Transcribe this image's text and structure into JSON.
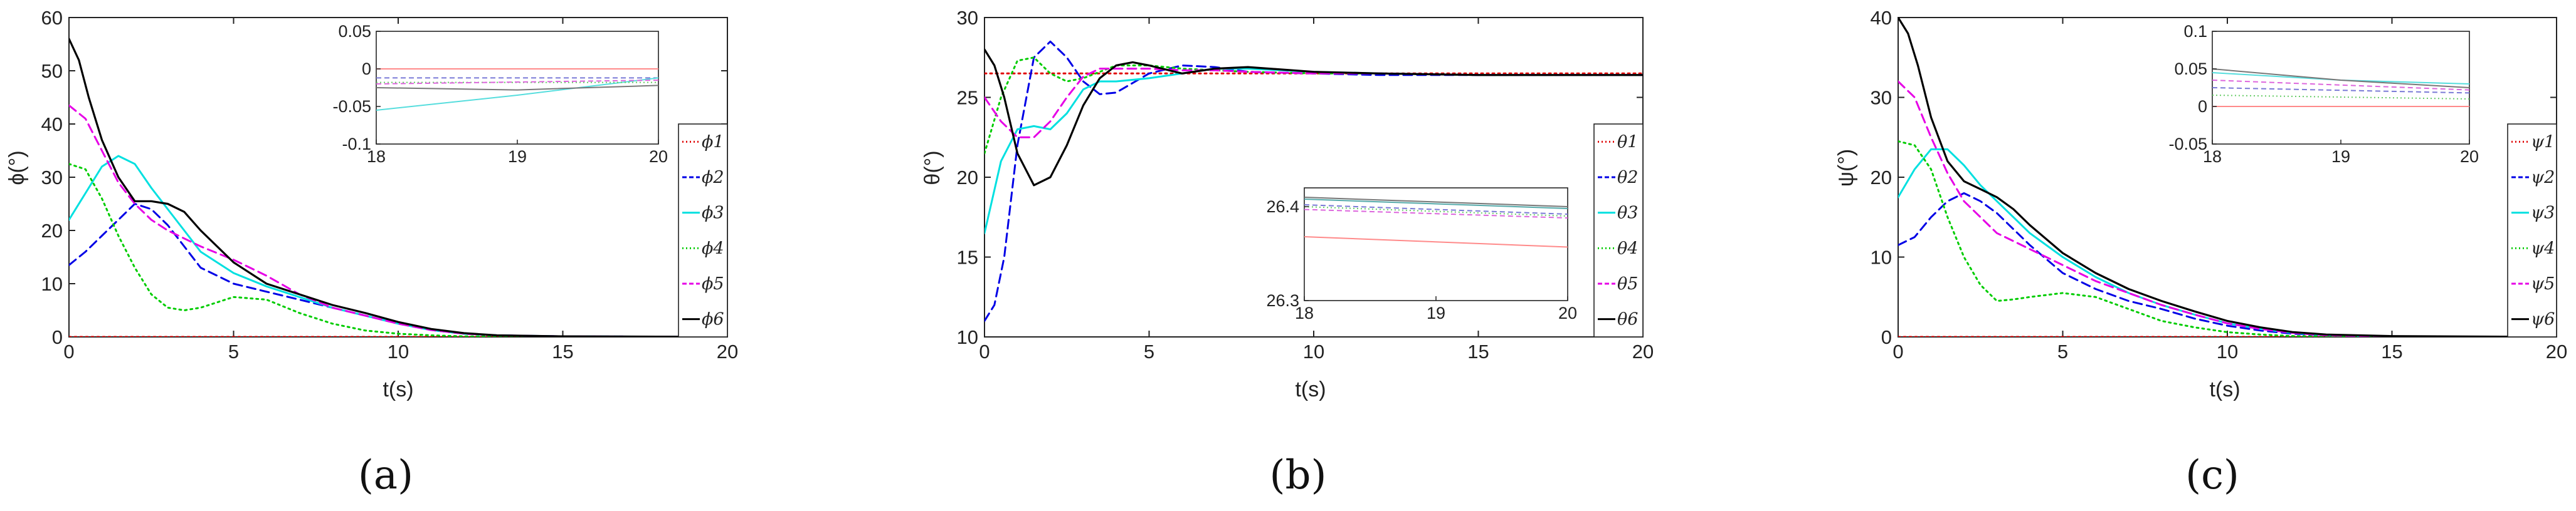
{
  "chart_data": [
    {
      "type": "line",
      "panel_label": "(a)",
      "xlabel": "t(s)",
      "ylabel": "ϕ(°)",
      "xlim": [
        0,
        20
      ],
      "ylim": [
        0,
        60
      ],
      "xticks": [
        "0",
        "5",
        "10",
        "15",
        "20"
      ],
      "yticks": [
        "0",
        "10",
        "20",
        "30",
        "40",
        "50",
        "60"
      ],
      "legend_symbol": "ϕ",
      "series": [
        {
          "name": "ϕ1",
          "color": "#e00000",
          "dash": "dot",
          "x": [
            0,
            20
          ],
          "y": [
            0,
            0
          ]
        },
        {
          "name": "ϕ2",
          "color": "#0000e6",
          "dash": "dash",
          "x": [
            0,
            0.5,
            1,
            1.5,
            2,
            2.5,
            3,
            3.5,
            4,
            5,
            6,
            7,
            8,
            9,
            10,
            11,
            12,
            13,
            15,
            20
          ],
          "y": [
            13.5,
            16,
            19,
            22,
            25,
            24,
            21,
            17,
            13,
            10,
            8.5,
            7,
            5.5,
            4,
            2.5,
            1.3,
            0.6,
            0.3,
            0.1,
            0
          ]
        },
        {
          "name": "ϕ3",
          "color": "#00e0e0",
          "dash": "solid",
          "x": [
            0,
            0.5,
            1,
            1.5,
            2,
            2.5,
            3,
            3.5,
            4,
            5,
            6,
            7,
            8,
            9,
            10,
            11,
            12,
            13,
            15,
            20
          ],
          "y": [
            22,
            27,
            32,
            34,
            32.5,
            28,
            24,
            20,
            16,
            12,
            9.5,
            7.5,
            5.5,
            4,
            2.5,
            1.3,
            0.6,
            0.3,
            0.1,
            0
          ]
        },
        {
          "name": "ϕ4",
          "color": "#00cc00",
          "dash": "dot",
          "x": [
            0,
            0.5,
            1,
            1.5,
            2,
            2.5,
            3,
            3.5,
            4,
            5,
            6,
            7,
            8,
            9,
            10,
            11,
            12,
            13,
            15,
            20
          ],
          "y": [
            32.5,
            31.5,
            26,
            19,
            13,
            8,
            5.5,
            5,
            5.5,
            7.5,
            7,
            4.5,
            2.5,
            1.2,
            0.6,
            0.3,
            0.1,
            0.05,
            0,
            0
          ]
        },
        {
          "name": "ϕ5",
          "color": "#e600e6",
          "dash": "dash",
          "x": [
            0,
            0.5,
            1,
            1.5,
            2,
            2.5,
            3,
            3.5,
            4,
            5,
            6,
            7,
            8,
            9,
            10,
            11,
            12,
            13,
            15,
            20
          ],
          "y": [
            43.5,
            41,
            35,
            29,
            25,
            22,
            20,
            18.5,
            17,
            14.5,
            11.5,
            8,
            5.5,
            4,
            2.5,
            1.3,
            0.6,
            0.3,
            0.1,
            0
          ]
        },
        {
          "name": "ϕ6",
          "color": "#000000",
          "dash": "solid",
          "x": [
            0,
            0.3,
            0.6,
            1,
            1.5,
            2,
            2.5,
            3,
            3.5,
            4,
            5,
            6,
            7,
            8,
            9,
            10,
            11,
            12,
            13,
            15,
            20
          ],
          "y": [
            56,
            52,
            45,
            37,
            30,
            25.5,
            25.5,
            25,
            23.5,
            20,
            14,
            10,
            8,
            6,
            4.5,
            2.8,
            1.5,
            0.7,
            0.3,
            0.1,
            0
          ]
        }
      ],
      "inset": {
        "xlim": [
          18,
          20
        ],
        "ylim": [
          -0.1,
          0.05
        ],
        "xticks": [
          "18",
          "19",
          "20"
        ],
        "yticks": [
          "0.05",
          "0",
          "-0.05",
          "-0.1"
        ],
        "series": [
          {
            "name": "ϕ1",
            "color": "#ff8a8a",
            "dash": "solid",
            "x": [
              18,
              20
            ],
            "y": [
              0,
              0
            ]
          },
          {
            "name": "ϕ2",
            "color": "#7a7ad6",
            "dash": "dash",
            "x": [
              18,
              20
            ],
            "y": [
              -0.012,
              -0.012
            ]
          },
          {
            "name": "ϕ3",
            "color": "#55dddd",
            "dash": "solid",
            "x": [
              18,
              19,
              20
            ],
            "y": [
              -0.055,
              -0.035,
              -0.012
            ]
          },
          {
            "name": "ϕ4",
            "color": "#66cc66",
            "dash": "dot",
            "x": [
              18,
              20
            ],
            "y": [
              -0.018,
              -0.018
            ]
          },
          {
            "name": "ϕ5",
            "color": "#dd66dd",
            "dash": "dash",
            "x": [
              18,
              20
            ],
            "y": [
              -0.02,
              -0.015
            ]
          },
          {
            "name": "ϕ6",
            "color": "#777777",
            "dash": "solid",
            "x": [
              18,
              19,
              20
            ],
            "y": [
              -0.025,
              -0.028,
              -0.022
            ]
          }
        ]
      }
    },
    {
      "type": "line",
      "panel_label": "(b)",
      "xlabel": "t(s)",
      "ylabel": "θ(°)",
      "xlim": [
        0,
        20
      ],
      "ylim": [
        10,
        30
      ],
      "xticks": [
        "0",
        "5",
        "10",
        "15",
        "20"
      ],
      "yticks": [
        "10",
        "15",
        "20",
        "25",
        "30"
      ],
      "legend_symbol": "θ",
      "series": [
        {
          "name": "θ1",
          "color": "#e00000",
          "dash": "dot",
          "x": [
            0,
            20
          ],
          "y": [
            26.5,
            26.5
          ]
        },
        {
          "name": "θ2",
          "color": "#0000e6",
          "dash": "dash",
          "x": [
            0,
            0.3,
            0.6,
            1,
            1.5,
            2,
            2.5,
            3,
            3.5,
            4,
            5,
            6,
            7,
            8,
            10,
            12,
            15,
            20
          ],
          "y": [
            11,
            12,
            15,
            22,
            27.5,
            28.5,
            27.5,
            26,
            25.2,
            25.3,
            26.5,
            27,
            26.9,
            26.6,
            26.5,
            26.4,
            26.4,
            26.4
          ]
        },
        {
          "name": "θ3",
          "color": "#00e0e0",
          "dash": "solid",
          "x": [
            0,
            0.5,
            1,
            1.5,
            2,
            2.5,
            3,
            3.5,
            4,
            5,
            6,
            7,
            8,
            10,
            12,
            15,
            20
          ],
          "y": [
            16.5,
            21,
            23,
            23.2,
            23,
            24,
            25.5,
            26,
            26,
            26.2,
            26.5,
            26.8,
            26.8,
            26.6,
            26.5,
            26.4,
            26.4
          ]
        },
        {
          "name": "θ4",
          "color": "#00cc00",
          "dash": "dot",
          "x": [
            0,
            0.5,
            1,
            1.5,
            2,
            2.5,
            3,
            3.5,
            4,
            5,
            6,
            7,
            8,
            10,
            12,
            15,
            20
          ],
          "y": [
            21.5,
            25,
            27.3,
            27.5,
            26.5,
            26,
            26.2,
            26.6,
            27,
            27,
            26.8,
            26.7,
            26.6,
            26.5,
            26.5,
            26.4,
            26.4
          ]
        },
        {
          "name": "θ5",
          "color": "#e600e6",
          "dash": "dash",
          "x": [
            0,
            0.5,
            1,
            1.5,
            2,
            2.5,
            3,
            3.5,
            4,
            5,
            6,
            7,
            8,
            10,
            12,
            15,
            20
          ],
          "y": [
            25,
            23.5,
            22.5,
            22.5,
            23.5,
            25,
            26.3,
            26.8,
            26.8,
            26.8,
            26.7,
            26.7,
            26.6,
            26.5,
            26.5,
            26.4,
            26.4
          ]
        },
        {
          "name": "θ6",
          "color": "#000000",
          "dash": "solid",
          "x": [
            0,
            0.3,
            0.6,
            1,
            1.5,
            2,
            2.5,
            3,
            3.5,
            4,
            4.5,
            5,
            6,
            7,
            8,
            10,
            12,
            15,
            20
          ],
          "y": [
            28,
            27,
            25,
            21.5,
            19.5,
            20,
            22,
            24.5,
            26.2,
            27,
            27.2,
            27,
            26.5,
            26.8,
            26.9,
            26.6,
            26.5,
            26.4,
            26.4
          ]
        }
      ],
      "inset": {
        "xlim": [
          18,
          20
        ],
        "ylim": [
          26.3,
          26.42
        ],
        "xticks": [
          "18",
          "19",
          "20"
        ],
        "yticks": [
          "26.4",
          "26.3"
        ],
        "series": [
          {
            "name": "θ1",
            "color": "#ff8a8a",
            "dash": "solid",
            "x": [
              18,
              20
            ],
            "y": [
              26.368,
              26.357
            ]
          },
          {
            "name": "θ2",
            "color": "#7a7ad6",
            "dash": "dash",
            "x": [
              18,
              20
            ],
            "y": [
              26.402,
              26.392
            ]
          },
          {
            "name": "θ3",
            "color": "#55aaaa",
            "dash": "solid",
            "x": [
              18,
              20
            ],
            "y": [
              26.408,
              26.398
            ]
          },
          {
            "name": "θ4",
            "color": "#66cc66",
            "dash": "dot",
            "x": [
              18,
              20
            ],
            "y": [
              26.4,
              26.39
            ]
          },
          {
            "name": "θ5",
            "color": "#dd66dd",
            "dash": "dash",
            "x": [
              18,
              20
            ],
            "y": [
              26.397,
              26.388
            ]
          },
          {
            "name": "θ6",
            "color": "#777777",
            "dash": "solid",
            "x": [
              18,
              20
            ],
            "y": [
              26.41,
              26.4
            ]
          }
        ]
      }
    },
    {
      "type": "line",
      "panel_label": "(c)",
      "xlabel": "t(s)",
      "ylabel": "ψ(°)",
      "xlim": [
        0,
        20
      ],
      "ylim": [
        0,
        40
      ],
      "xticks": [
        "0",
        "5",
        "10",
        "15",
        "20"
      ],
      "yticks": [
        "0",
        "10",
        "20",
        "30",
        "40"
      ],
      "legend_symbol": "ψ",
      "series": [
        {
          "name": "ψ1",
          "color": "#e00000",
          "dash": "dot",
          "x": [
            0,
            20
          ],
          "y": [
            0,
            0
          ]
        },
        {
          "name": "ψ2",
          "color": "#0000e6",
          "dash": "dash",
          "x": [
            0,
            0.5,
            1,
            1.5,
            2,
            2.5,
            3,
            3.5,
            4,
            5,
            6,
            7,
            8,
            9,
            10,
            11,
            12,
            13,
            15,
            20
          ],
          "y": [
            11.5,
            12.5,
            15,
            17,
            18,
            17,
            15.5,
            13.5,
            11.5,
            8,
            6,
            4.5,
            3.5,
            2.3,
            1.4,
            0.8,
            0.4,
            0.2,
            0.05,
            0
          ]
        },
        {
          "name": "ψ3",
          "color": "#00e0e0",
          "dash": "solid",
          "x": [
            0,
            0.5,
            1,
            1.5,
            2,
            2.5,
            3,
            3.5,
            4,
            5,
            6,
            7,
            8,
            9,
            10,
            11,
            12,
            13,
            15,
            20
          ],
          "y": [
            17.5,
            21,
            23.5,
            23.5,
            21.5,
            19,
            17,
            15,
            13,
            10,
            7.5,
            5.5,
            4,
            2.8,
            1.7,
            1,
            0.5,
            0.2,
            0.05,
            0
          ]
        },
        {
          "name": "ψ4",
          "color": "#00cc00",
          "dash": "dot",
          "x": [
            0,
            0.5,
            1,
            1.5,
            2,
            2.5,
            3,
            3.5,
            4,
            5,
            6,
            7,
            8,
            9,
            10,
            11,
            12,
            13,
            15,
            20
          ],
          "y": [
            24.5,
            24,
            21,
            15,
            10,
            6.5,
            4.5,
            4.7,
            5,
            5.5,
            5,
            3.5,
            2,
            1.2,
            0.6,
            0.3,
            0.1,
            0.05,
            0,
            0
          ]
        },
        {
          "name": "ψ5",
          "color": "#e600e6",
          "dash": "dash",
          "x": [
            0,
            0.5,
            1,
            1.5,
            2,
            2.5,
            3,
            3.5,
            4,
            5,
            6,
            7,
            8,
            9,
            10,
            11,
            12,
            13,
            15,
            20
          ],
          "y": [
            32,
            30,
            25,
            20.5,
            17,
            15,
            13,
            12,
            11,
            9,
            7,
            5.5,
            4,
            2.8,
            1.7,
            1,
            0.5,
            0.2,
            0.05,
            0
          ]
        },
        {
          "name": "ψ6",
          "color": "#000000",
          "dash": "solid",
          "x": [
            0,
            0.3,
            0.6,
            1,
            1.5,
            2,
            2.5,
            3,
            3.5,
            4,
            5,
            6,
            7,
            8,
            9,
            10,
            11,
            12,
            13,
            15,
            20
          ],
          "y": [
            40,
            38,
            34,
            27.5,
            22,
            19.5,
            18.5,
            17.5,
            16,
            14,
            10.5,
            8,
            6,
            4.5,
            3.2,
            2,
            1.2,
            0.6,
            0.3,
            0.1,
            0
          ]
        }
      ],
      "inset": {
        "xlim": [
          18,
          20
        ],
        "ylim": [
          -0.05,
          0.1
        ],
        "xticks": [
          "18",
          "19",
          "20"
        ],
        "yticks": [
          "0.1",
          "0.05",
          "0",
          "-0.05"
        ],
        "series": [
          {
            "name": "ψ1",
            "color": "#ff8a8a",
            "dash": "solid",
            "x": [
              18,
              20
            ],
            "y": [
              0,
              0
            ]
          },
          {
            "name": "ψ2",
            "color": "#7a7ad6",
            "dash": "dash",
            "x": [
              18,
              20
            ],
            "y": [
              0.025,
              0.018
            ]
          },
          {
            "name": "ψ3",
            "color": "#55dddd",
            "dash": "solid",
            "x": [
              18,
              19,
              20
            ],
            "y": [
              0.045,
              0.035,
              0.03
            ]
          },
          {
            "name": "ψ4",
            "color": "#66cc66",
            "dash": "dot",
            "x": [
              18,
              20
            ],
            "y": [
              0.015,
              0.01
            ]
          },
          {
            "name": "ψ5",
            "color": "#dd66dd",
            "dash": "dash",
            "x": [
              18,
              20
            ],
            "y": [
              0.035,
              0.022
            ]
          },
          {
            "name": "ψ6",
            "color": "#777777",
            "dash": "solid",
            "x": [
              18,
              19,
              20
            ],
            "y": [
              0.05,
              0.035,
              0.025
            ]
          }
        ]
      }
    }
  ]
}
